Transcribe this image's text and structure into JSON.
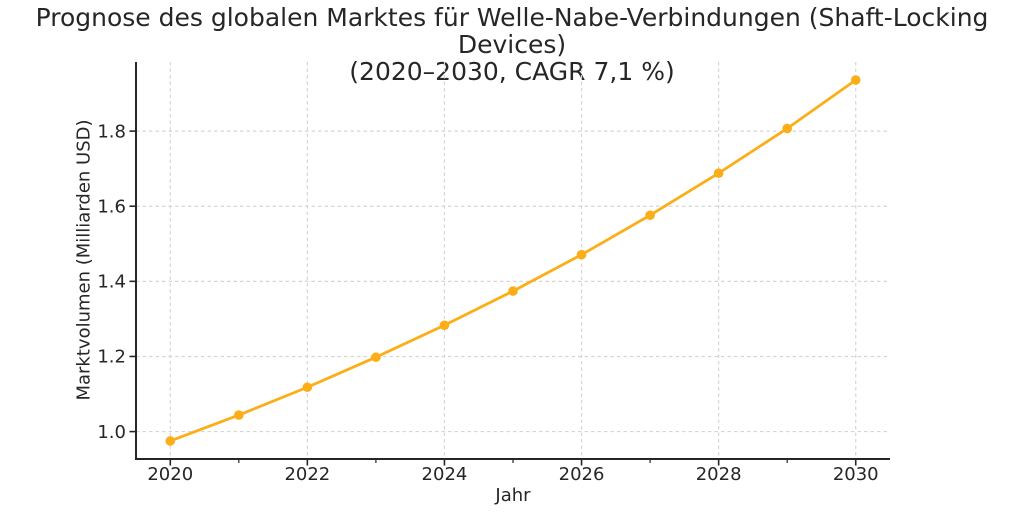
{
  "title": {
    "line1": "Prognose des globalen Marktes für Welle-Nabe-Verbindungen (Shaft-Locking Devices)",
    "line2": "(2020–2030, CAGR 7,1 %)"
  },
  "colors": {
    "line": "#FBAE17",
    "marker": "#FBAE17",
    "grid": "#d6d6d6",
    "axis": "#262626",
    "text": "#262626",
    "background": "#ffffff"
  },
  "chart_data": {
    "type": "line",
    "title": "Prognose des globalen Marktes für Welle-Nabe-Verbindungen (Shaft-Locking Devices) (2020–2030, CAGR 7,1 %)",
    "xlabel": "Jahr",
    "ylabel": "Marktvolumen (Milliarden USD)",
    "x": [
      2020,
      2021,
      2022,
      2023,
      2024,
      2025,
      2026,
      2027,
      2028,
      2029,
      2030
    ],
    "series": [
      {
        "name": "Marktvolumen (Milliarden USD)",
        "values": [
          0.975,
          1.044,
          1.118,
          1.198,
          1.283,
          1.374,
          1.471,
          1.576,
          1.688,
          1.807,
          1.936
        ]
      }
    ],
    "cagr_percent": "7,1 %",
    "xlim": [
      2019.5,
      2030.5
    ],
    "ylim": [
      0.927,
      1.984
    ],
    "xticks": {
      "major": [
        2020,
        2022,
        2024,
        2026,
        2028,
        2030
      ],
      "labels": [
        "2020",
        "2022",
        "2024",
        "2026",
        "2028",
        "2030"
      ],
      "minor": [
        2021,
        2023,
        2025,
        2027,
        2029
      ]
    },
    "yticks": {
      "values": [
        1.0,
        1.2,
        1.4,
        1.6,
        1.8
      ],
      "labels": [
        "1.0",
        "1.2",
        "1.4",
        "1.6",
        "1.8"
      ]
    },
    "grid": true,
    "grid_style": "dashed",
    "legend": "none",
    "marker": "circle"
  }
}
